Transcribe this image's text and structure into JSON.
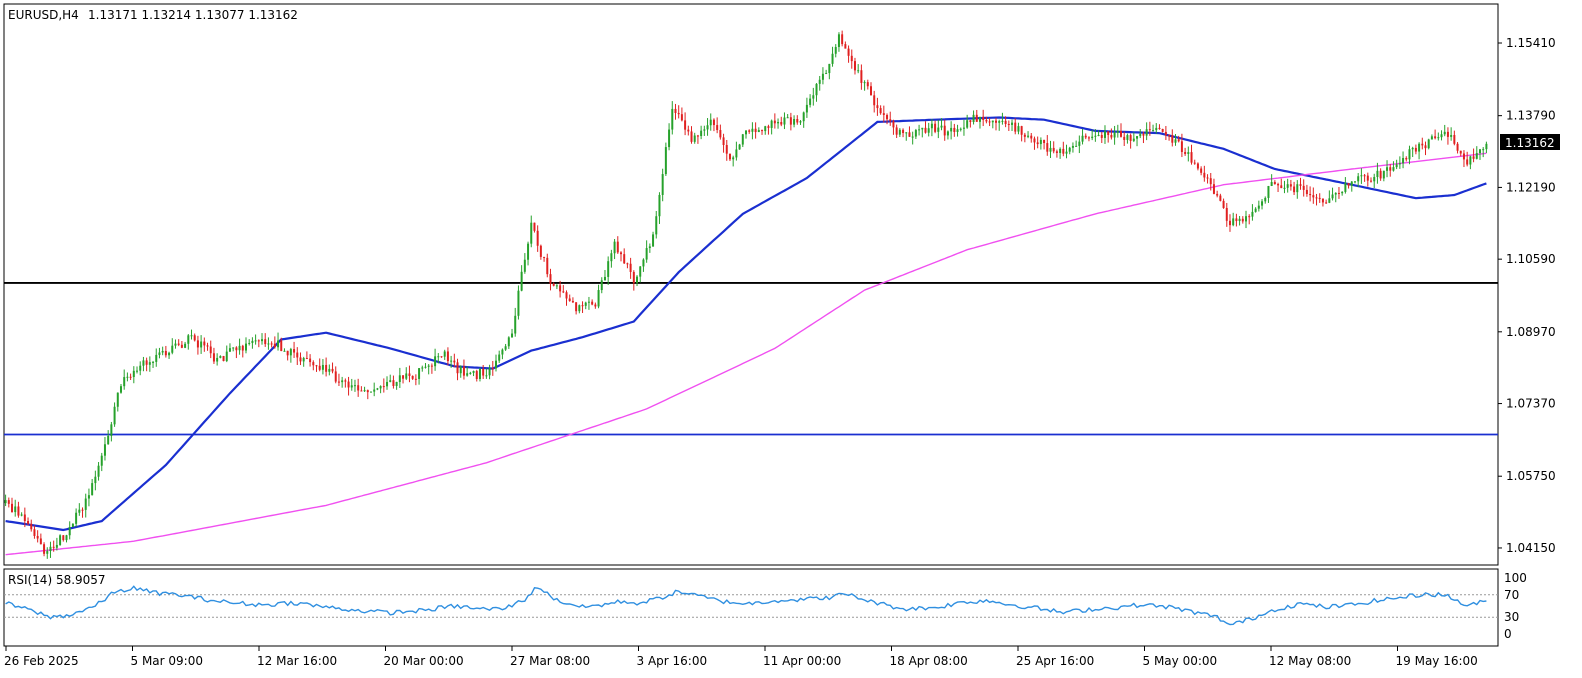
{
  "header": {
    "symbol": "EURUSD,H4",
    "ohlc": "1.13171 1.13214 1.13077 1.13162"
  },
  "rsi_header": "RSI(14) 58.9057",
  "last_price_label": "1.13162",
  "colors": {
    "bull": "#26a12b",
    "bear": "#e02020",
    "ma_fast": "#1a2fd0",
    "ma_slow": "#f050f0",
    "rsi": "#2f8fe0",
    "resistance": "#000000",
    "support": "#1a2fd0"
  },
  "chart_data": [
    {
      "type": "candlestick",
      "instrument": "EURUSD",
      "timeframe": "H4",
      "x_tick_labels": [
        "26 Feb 2025",
        "5 Mar 09:00",
        "12 Mar 16:00",
        "20 Mar 00:00",
        "27 Mar 08:00",
        "3 Apr 16:00",
        "11 Apr 00:00",
        "18 Apr 08:00",
        "25 Apr 16:00",
        "5 May 00:00",
        "12 May 08:00",
        "19 May 16:00"
      ],
      "y_tick_labels": [
        "1.15410",
        "1.13790",
        "1.12190",
        "1.10590",
        "1.08970",
        "1.07370",
        "1.05750",
        "1.04150"
      ],
      "y_ticks": [
        1.1541,
        1.1379,
        1.1219,
        1.1059,
        1.0897,
        1.0737,
        1.0575,
        1.0415
      ],
      "ylim": [
        1.0377,
        1.1628
      ],
      "last_price": 1.13162,
      "horizontal_lines": [
        {
          "price": 1.1006,
          "color": "black"
        },
        {
          "price": 1.0668,
          "color": "blue"
        }
      ],
      "price_path_anchors": [
        [
          0,
          1.0515
        ],
        [
          6,
          1.0485
        ],
        [
          12,
          1.041
        ],
        [
          18,
          1.044
        ],
        [
          24,
          1.0505
        ],
        [
          30,
          1.061
        ],
        [
          36,
          1.0785
        ],
        [
          42,
          1.082
        ],
        [
          50,
          1.085
        ],
        [
          58,
          1.0885
        ],
        [
          66,
          1.0835
        ],
        [
          74,
          1.0865
        ],
        [
          82,
          1.088
        ],
        [
          88,
          1.0855
        ],
        [
          94,
          1.0835
        ],
        [
          104,
          1.079
        ],
        [
          112,
          1.0765
        ],
        [
          120,
          1.0785
        ],
        [
          128,
          1.08
        ],
        [
          136,
          1.085
        ],
        [
          144,
          1.0795
        ],
        [
          152,
          1.0815
        ],
        [
          158,
          1.09
        ],
        [
          164,
          1.114
        ],
        [
          170,
          1.101
        ],
        [
          178,
          1.095
        ],
        [
          184,
          1.096
        ],
        [
          190,
          1.11
        ],
        [
          196,
          1.101
        ],
        [
          202,
          1.1115
        ],
        [
          208,
          1.14
        ],
        [
          214,
          1.133
        ],
        [
          220,
          1.137
        ],
        [
          226,
          1.1285
        ],
        [
          232,
          1.135
        ],
        [
          240,
          1.136
        ],
        [
          248,
          1.1375
        ],
        [
          256,
          1.148
        ],
        [
          260,
          1.155
        ],
        [
          266,
          1.147
        ],
        [
          272,
          1.14
        ],
        [
          280,
          1.133
        ],
        [
          288,
          1.1355
        ],
        [
          296,
          1.134
        ],
        [
          304,
          1.138
        ],
        [
          312,
          1.1365
        ],
        [
          320,
          1.133
        ],
        [
          328,
          1.129
        ],
        [
          336,
          1.1325
        ],
        [
          344,
          1.134
        ],
        [
          352,
          1.1325
        ],
        [
          360,
          1.1355
        ],
        [
          368,
          1.13
        ],
        [
          376,
          1.123
        ],
        [
          382,
          1.114
        ],
        [
          388,
          1.116
        ],
        [
          396,
          1.123
        ],
        [
          404,
          1.1215
        ],
        [
          412,
          1.119
        ],
        [
          420,
          1.123
        ],
        [
          428,
          1.1245
        ],
        [
          436,
          1.1285
        ],
        [
          444,
          1.132
        ],
        [
          450,
          1.1335
        ],
        [
          456,
          1.128
        ],
        [
          462,
          1.1316
        ]
      ],
      "moving_averages": [
        {
          "color": "blue",
          "anchors": [
            [
              0,
              1.0475
            ],
            [
              18,
              1.0455
            ],
            [
              30,
              1.0475
            ],
            [
              50,
              1.06
            ],
            [
              70,
              1.076
            ],
            [
              86,
              1.088
            ],
            [
              100,
              1.0895
            ],
            [
              120,
              1.086
            ],
            [
              140,
              1.082
            ],
            [
              152,
              1.0815
            ],
            [
              164,
              1.0855
            ],
            [
              180,
              1.0885
            ],
            [
              196,
              1.092
            ],
            [
              210,
              1.103
            ],
            [
              230,
              1.116
            ],
            [
              250,
              1.124
            ],
            [
              272,
              1.1365
            ],
            [
              290,
              1.137
            ],
            [
              310,
              1.1375
            ],
            [
              324,
              1.137
            ],
            [
              340,
              1.1345
            ],
            [
              360,
              1.134
            ],
            [
              380,
              1.1305
            ],
            [
              396,
              1.126
            ],
            [
              420,
              1.1225
            ],
            [
              440,
              1.1195
            ],
            [
              452,
              1.1202
            ],
            [
              462,
              1.1228
            ]
          ]
        },
        {
          "color": "magenta",
          "anchors": [
            [
              0,
              1.04
            ],
            [
              40,
              1.043
            ],
            [
              100,
              1.051
            ],
            [
              150,
              1.0605
            ],
            [
              200,
              1.0725
            ],
            [
              240,
              1.086
            ],
            [
              268,
              1.099
            ],
            [
              300,
              1.108
            ],
            [
              340,
              1.116
            ],
            [
              380,
              1.1225
            ],
            [
              420,
              1.126
            ],
            [
              462,
              1.1295
            ]
          ]
        }
      ]
    },
    {
      "type": "line",
      "indicator": "RSI(14)",
      "value": 58.9057,
      "levels": [
        70,
        30
      ],
      "y_tick_labels": [
        "100",
        "70",
        "30",
        "0"
      ],
      "ylim": [
        0,
        100
      ],
      "rsi_anchors": [
        [
          0,
          55
        ],
        [
          8,
          42
        ],
        [
          14,
          30
        ],
        [
          20,
          34
        ],
        [
          28,
          50
        ],
        [
          34,
          75
        ],
        [
          40,
          82
        ],
        [
          46,
          74
        ],
        [
          54,
          70
        ],
        [
          62,
          62
        ],
        [
          70,
          56
        ],
        [
          80,
          52
        ],
        [
          90,
          56
        ],
        [
          100,
          48
        ],
        [
          110,
          42
        ],
        [
          120,
          38
        ],
        [
          130,
          42
        ],
        [
          140,
          50
        ],
        [
          150,
          44
        ],
        [
          156,
          46
        ],
        [
          162,
          62
        ],
        [
          166,
          85
        ],
        [
          172,
          60
        ],
        [
          180,
          48
        ],
        [
          186,
          52
        ],
        [
          192,
          58
        ],
        [
          198,
          55
        ],
        [
          204,
          64
        ],
        [
          210,
          76
        ],
        [
          216,
          68
        ],
        [
          224,
          58
        ],
        [
          232,
          54
        ],
        [
          240,
          60
        ],
        [
          250,
          62
        ],
        [
          258,
          66
        ],
        [
          262,
          72
        ],
        [
          270,
          58
        ],
        [
          280,
          45
        ],
        [
          290,
          47
        ],
        [
          298,
          56
        ],
        [
          306,
          60
        ],
        [
          314,
          52
        ],
        [
          322,
          46
        ],
        [
          330,
          38
        ],
        [
          338,
          44
        ],
        [
          346,
          47
        ],
        [
          354,
          52
        ],
        [
          362,
          49
        ],
        [
          370,
          40
        ],
        [
          378,
          30
        ],
        [
          382,
          16
        ],
        [
          388,
          26
        ],
        [
          396,
          44
        ],
        [
          404,
          54
        ],
        [
          412,
          48
        ],
        [
          420,
          52
        ],
        [
          428,
          60
        ],
        [
          436,
          66
        ],
        [
          444,
          72
        ],
        [
          450,
          68
        ],
        [
          456,
          50
        ],
        [
          462,
          59
        ]
      ]
    }
  ]
}
